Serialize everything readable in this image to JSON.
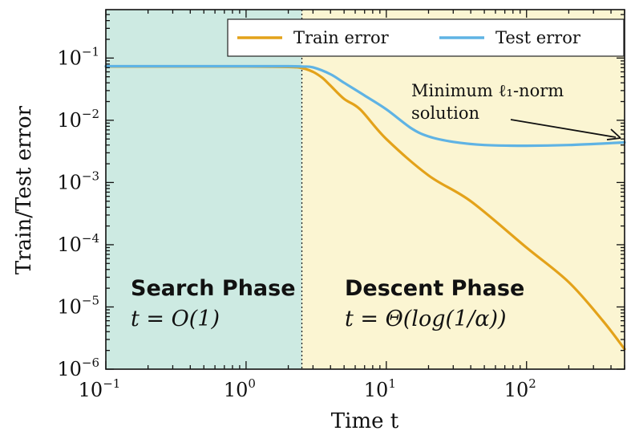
{
  "colors": {
    "search_region": "#cdeae2",
    "descent_region": "#fbf5d2",
    "train": "#e3a21a",
    "test": "#5fb3e4",
    "axis": "#111111"
  },
  "chart_data": {
    "type": "line",
    "xscale": "log",
    "yscale": "log",
    "xlim": [
      0.1,
      500
    ],
    "ylim": [
      1e-06,
      0.6
    ],
    "xlabel": "Time t",
    "ylabel": "Train/Test error",
    "x_ticks": [
      {
        "value": 0.1,
        "base": "10",
        "exp": "−1"
      },
      {
        "value": 1,
        "base": "10",
        "exp": "0"
      },
      {
        "value": 10,
        "base": "10",
        "exp": "1"
      },
      {
        "value": 100,
        "base": "10",
        "exp": "2"
      }
    ],
    "y_ticks": [
      {
        "value": 1e-06,
        "base": "10",
        "exp": "−6"
      },
      {
        "value": 1e-05,
        "base": "10",
        "exp": "−5"
      },
      {
        "value": 0.0001,
        "base": "10",
        "exp": "−4"
      },
      {
        "value": 0.001,
        "base": "10",
        "exp": "−3"
      },
      {
        "value": 0.01,
        "base": "10",
        "exp": "−2"
      },
      {
        "value": 0.1,
        "base": "10",
        "exp": "−1"
      }
    ],
    "phase_boundary_x": 2.5,
    "phases": [
      {
        "title": "Search Phase",
        "formula": "t = O(1)"
      },
      {
        "title": "Descent Phase",
        "formula": "t = Θ(log(1/α))"
      }
    ],
    "legend": {
      "placement": "top-right"
    },
    "series": [
      {
        "name": "Train error",
        "color_key": "train",
        "x": [
          0.1,
          0.3,
          1,
          2,
          2.5,
          3,
          3.5,
          4,
          5,
          6.5,
          10,
          20,
          40,
          100,
          200,
          350,
          500
        ],
        "y": [
          0.073,
          0.073,
          0.073,
          0.072,
          0.069,
          0.06,
          0.048,
          0.036,
          0.022,
          0.015,
          0.005,
          0.0013,
          0.0005,
          9e-05,
          2.5e-05,
          6e-06,
          2.1e-06
        ]
      },
      {
        "name": "Test error",
        "color_key": "test",
        "x": [
          0.1,
          0.3,
          1,
          2,
          2.5,
          3,
          4,
          5,
          7,
          10,
          15,
          20,
          30,
          50,
          100,
          200,
          500
        ],
        "y": [
          0.074,
          0.074,
          0.074,
          0.074,
          0.073,
          0.071,
          0.055,
          0.04,
          0.025,
          0.015,
          0.0075,
          0.0055,
          0.0045,
          0.004,
          0.0039,
          0.004,
          0.0044
        ]
      }
    ],
    "annotation": {
      "lines": [
        "Minimum ℓ₁-norm",
        "solution"
      ]
    }
  }
}
